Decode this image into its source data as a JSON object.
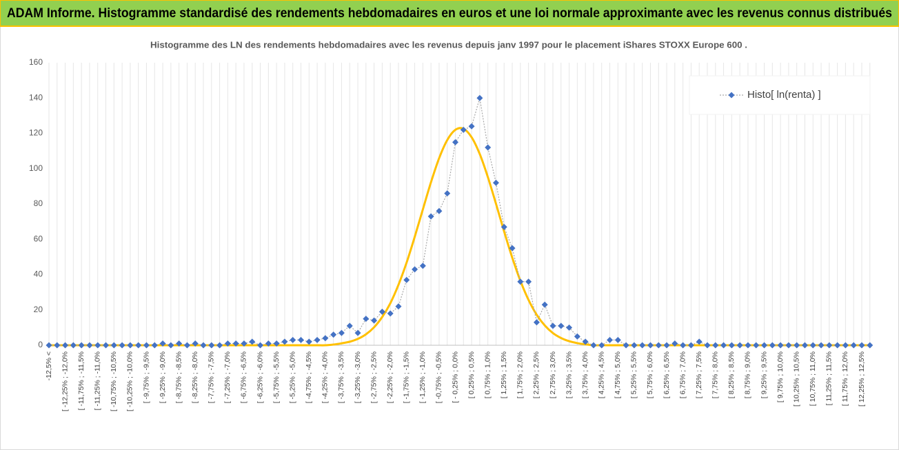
{
  "chart_data": {
    "type": "line",
    "banner": "ADAM Informe. Histogramme standardisé des rendements hebdomadaires en euros et une loi normale approximante avec les revenus connus distribués",
    "title": "Histogramme des LN des rendements hebdomadaires avec les revenus depuis janv 1997 pour le placement iShares STOXX Europe 600 .",
    "categories": [
      "-12,5% <",
      null,
      "[ -12,25% ; -12,0%",
      null,
      "[ -11,75% ; -11,5%",
      null,
      "[ -11,25% ; -11,0%",
      null,
      "[ -10,75% ; -10,5%",
      null,
      "[ -10,25% ; -10,0%",
      null,
      "[ -9,75% ; -9,5%",
      null,
      "[ -9,25% ; -9,0%",
      null,
      "[ -8,75% ; -8,5%",
      null,
      "[ -8,25% ; -8,0%",
      null,
      "[ -7,75% ; -7,5%",
      null,
      "[ -7,25% ; -7,0%",
      null,
      "[ -6,75% ; -6,5%",
      null,
      "[ -6,25% ; -6,0%",
      null,
      "[ -5,75% ; -5,5%",
      null,
      "[ -5,25% ; -5,0%",
      null,
      "[ -4,75% ; -4,5%",
      null,
      "[ -4,25% ; -4,0%",
      null,
      "[ -3,75% ; -3,5%",
      null,
      "[ -3,25% ; -3,0%",
      null,
      "[ -2,75% ; -2,5%",
      null,
      "[ -2,25% ; -2,0%",
      null,
      "[ -1,75% ; -1,5%",
      null,
      "[ -1,25% ; -1,0%",
      null,
      "[ -0,75% ; -0,5%",
      null,
      "[ - 0,25% ; 0,0%",
      null,
      "[ 0,25% ; 0,5%",
      null,
      "[ 0,75% ; 1,0%",
      null,
      "[ 1,25% ; 1,5%",
      null,
      "[ 1,75% ; 2,0%",
      null,
      "[ 2,25% ; 2,5%",
      null,
      "[ 2,75% ; 3,0%",
      null,
      "[ 3,25% ; 3,5%",
      null,
      "[ 3,75% ; 4,0%",
      null,
      "[ 4,25% ; 4,5%",
      null,
      "[ 4,75% ; 5,0%",
      null,
      "[ 5,25% ; 5,5%",
      null,
      "[ 5,75% ; 6,0%",
      null,
      "[ 6,25% ; 6,5%",
      null,
      "[ 6,75% ; 7,0%",
      null,
      "[ 7,25% ; 7,5%",
      null,
      "[ 7,75% ; 8,0%",
      null,
      "[ 8,25% ; 8,5%",
      null,
      "[ 8,75% ; 9,0%",
      null,
      "[ 9,25% ; 9,5%",
      null,
      "[ 9,75% ; 10,0%",
      null,
      "[ 10,25% ; 10,5%",
      null,
      "[ 10,75% ; 11,0%",
      null,
      "[ 11,25% ; 11,5%",
      null,
      "[ 11,75% ; 12,0%",
      null,
      "[ 12,25% ; 12,5%",
      null
    ],
    "series": [
      {
        "name": "Histo[ ln(renta) ]",
        "color": "#4472c4",
        "values": [
          0,
          0,
          0,
          0,
          0,
          0,
          0,
          0,
          0,
          0,
          0,
          0,
          0,
          0,
          1,
          0,
          1,
          0,
          1,
          0,
          0,
          0,
          1,
          1,
          1,
          2,
          0,
          1,
          1,
          2,
          3,
          3,
          2,
          3,
          4,
          6,
          7,
          11,
          7,
          15,
          14,
          19,
          18,
          22,
          37,
          43,
          45,
          73,
          76,
          86,
          115,
          122,
          124,
          140,
          112,
          92,
          67,
          55,
          36,
          36,
          13,
          23,
          11,
          11,
          10,
          5,
          2,
          0,
          0,
          3,
          3,
          0,
          0,
          0,
          0,
          0,
          0,
          1,
          0,
          0,
          2,
          0,
          0,
          0,
          0,
          0,
          0,
          0,
          0,
          0,
          0,
          0,
          0,
          0,
          0,
          0,
          0,
          0,
          0,
          0,
          0,
          0
        ]
      },
      {
        "color": "#ffc000",
        "values": [
          0,
          0,
          0,
          0,
          0,
          0,
          0,
          0,
          0,
          0,
          0,
          0,
          0,
          0,
          0,
          0,
          0,
          0,
          0,
          0,
          0,
          0,
          0,
          0,
          0,
          0,
          0,
          0,
          0,
          0,
          0,
          0,
          0,
          0,
          0,
          0.4,
          1.1,
          2,
          3.6,
          6.2,
          10.2,
          16,
          23.8,
          34.2,
          46.8,
          61.4,
          76.9,
          92.3,
          105.9,
          116.2,
          122,
          122.6,
          117.8,
          108.3,
          95.2,
          80.1,
          64.4,
          49.6,
          36.5,
          25.7,
          17.3,
          11.2,
          6.9,
          4.1,
          2.3,
          1.2,
          0.5,
          0,
          0,
          0,
          0,
          0,
          0,
          0,
          0,
          0,
          0,
          0,
          0,
          0,
          0,
          0,
          0,
          0,
          0,
          0,
          0,
          0,
          0,
          0,
          0,
          0,
          0,
          0,
          0,
          0,
          0,
          0,
          0,
          0,
          0,
          0
        ]
      }
    ],
    "ylim": [
      0,
      160
    ],
    "yticks": [
      0,
      20,
      40,
      60,
      80,
      100,
      120,
      140,
      160
    ],
    "grid": true,
    "legend": "upper right"
  }
}
